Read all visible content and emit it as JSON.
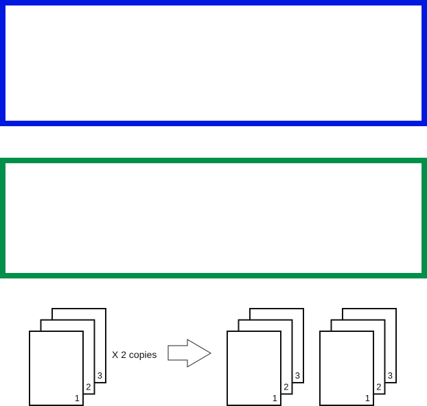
{
  "colors": {
    "top_box": "#0019e0",
    "bottom_box": "#00904a"
  },
  "diagram": {
    "copies_label": "X 2 copies",
    "original_stack": {
      "pages": [
        "1",
        "2",
        "3"
      ]
    },
    "output_stacks": [
      {
        "pages": [
          "1",
          "2",
          "3"
        ]
      },
      {
        "pages": [
          "1",
          "2",
          "3"
        ]
      }
    ]
  }
}
